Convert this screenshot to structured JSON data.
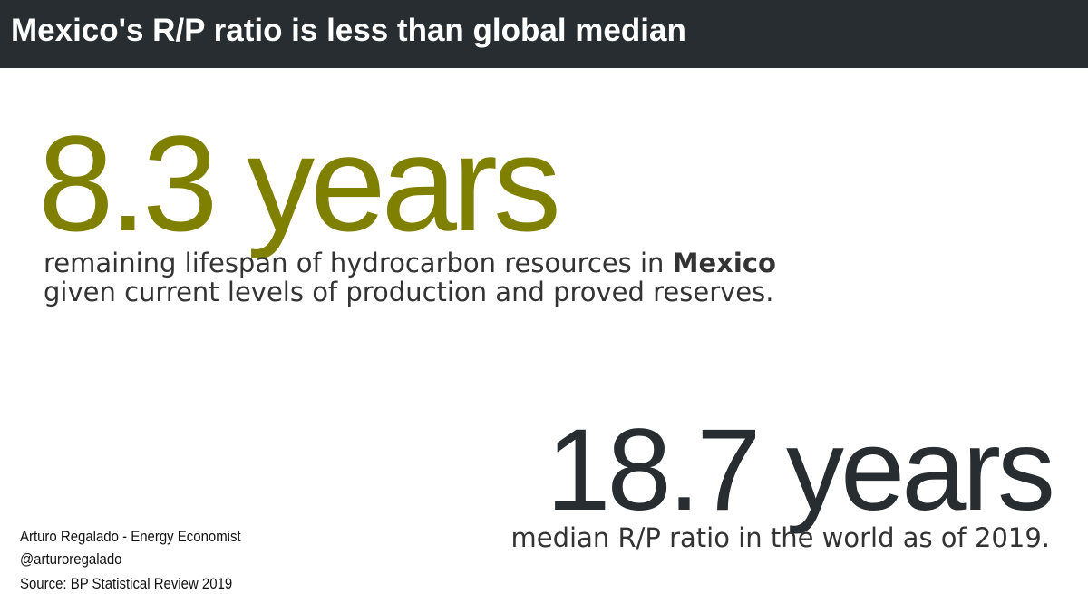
{
  "header": {
    "title": "Mexico's R/P ratio is less than global median"
  },
  "stats": [
    {
      "value": "8.3 years",
      "line1": "remaining lifespan of hydrocarbon resources in",
      "highlight": "Mexico",
      "line2": "given current levels of production and proved reserves."
    },
    {
      "value": "18.7 years",
      "line1": "median R/P ratio in the world as of 2019."
    }
  ],
  "footer": {
    "author": "Arturo Regalado - Energy Economist",
    "handle": "@arturoregalado",
    "source": "Source: BP Statistical Review 2019"
  }
}
